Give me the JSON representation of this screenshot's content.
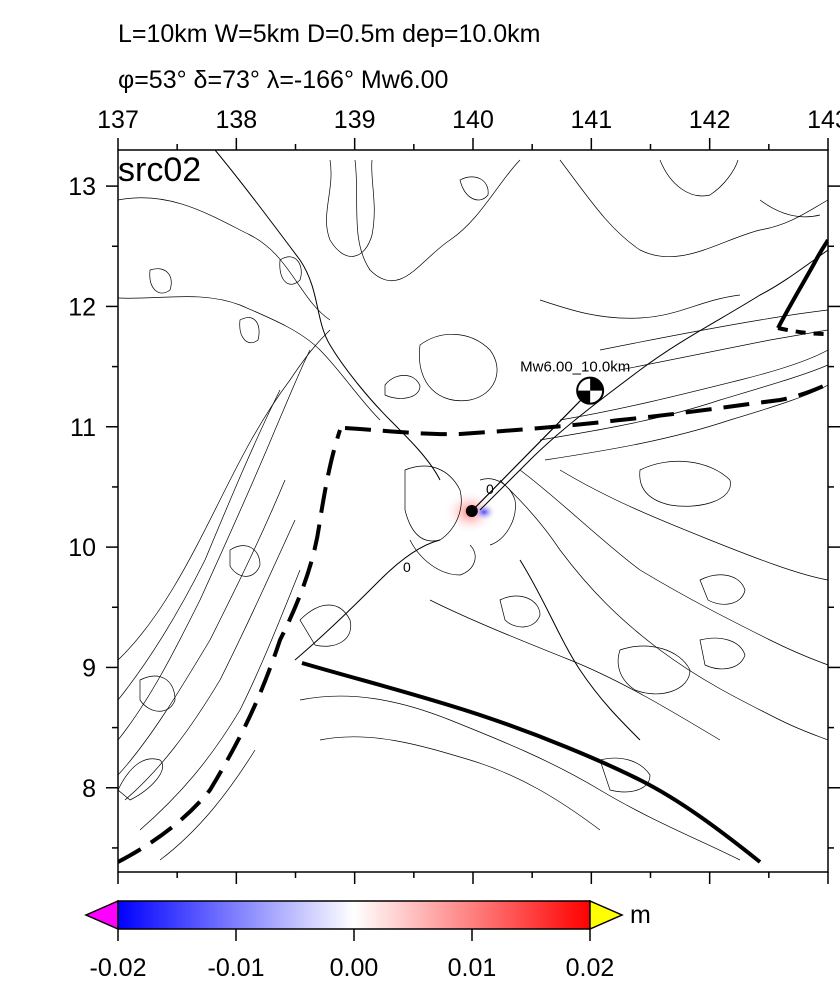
{
  "header": {
    "line1": "L=10km W=5km D=0.5m dep=10.0km",
    "line2": "φ=53° δ=73° λ=-166° Mw6.00"
  },
  "map": {
    "panel_label": "src02",
    "lon_range": [
      137,
      143
    ],
    "lat_range": [
      7.3,
      13.3
    ],
    "lon_ticks": [
      "137",
      "138",
      "139",
      "140",
      "141",
      "142",
      "143"
    ],
    "lat_ticks": [
      "8",
      "9",
      "10",
      "11",
      "12",
      "13"
    ],
    "event": {
      "label": "Mw6.00_10.0km",
      "epicenter": [
        139.99,
        10.3
      ],
      "beachball_position": [
        140.99,
        11.3
      ],
      "strike": 53,
      "dip": 73,
      "rake": -166
    },
    "contour_labels": [
      "0",
      "0"
    ],
    "trench_colors": {
      "line": "#000000",
      "land_contour": "#000000"
    }
  },
  "colorbar": {
    "unit": "m",
    "range": [
      -0.02,
      0.02
    ],
    "tick_labels": [
      "-0.02",
      "-0.01",
      "0.00",
      "0.01",
      "0.02"
    ],
    "colors": {
      "low": "#0000ff",
      "mid": "#ffffff",
      "high": "#ff0000",
      "under": "#ff00ff",
      "over": "#ffff00"
    }
  }
}
